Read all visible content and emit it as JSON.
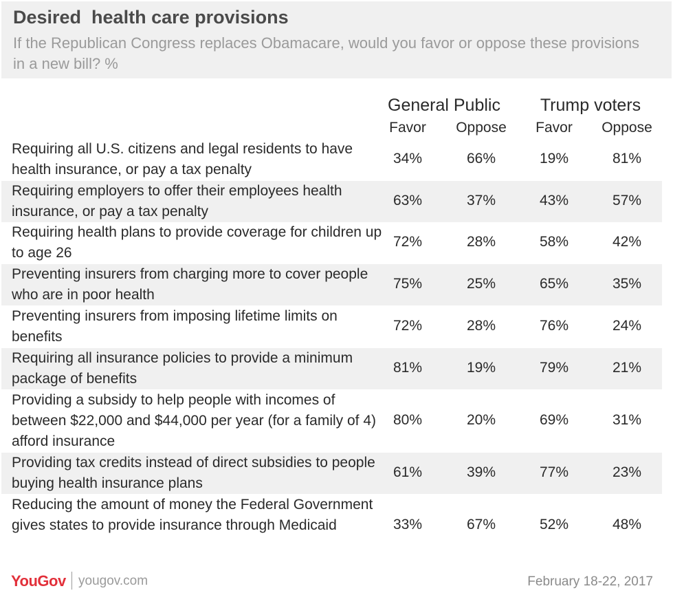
{
  "header": {
    "title": "Desired  health care provisions",
    "subtitle": "If the Republican Congress replaces Obamacare, would you favor or oppose these provisions in a new bill? %"
  },
  "colors": {
    "header_bg": "#f0f0f0",
    "row_shade": "#f0f0f0",
    "text": "#2a2a2a",
    "brand": "#e2303a"
  },
  "chart_data": {
    "type": "table",
    "groups": [
      {
        "name": "General Public",
        "columns": [
          "Favor",
          "Oppose"
        ]
      },
      {
        "name": "Trump voters",
        "columns": [
          "Favor",
          "Oppose"
        ]
      }
    ],
    "rows": [
      {
        "label": "Requiring all U.S. citizens and legal residents to have health insurance, or pay a tax penalty",
        "values": [
          "34%",
          "66%",
          "19%",
          "81%"
        ]
      },
      {
        "label": "Requiring employers to offer their employees health insurance, or pay a tax penalty",
        "values": [
          "63%",
          "37%",
          "43%",
          "57%"
        ]
      },
      {
        "label": "Requiring health plans to provide coverage for children up to age 26",
        "values": [
          "72%",
          "28%",
          "58%",
          "42%"
        ]
      },
      {
        "label": "Preventing insurers from charging more to cover people who are in poor health",
        "values": [
          "75%",
          "25%",
          "65%",
          "35%"
        ]
      },
      {
        "label": "Preventing insurers from imposing lifetime limits on benefits",
        "values": [
          "72%",
          "28%",
          "76%",
          "24%"
        ]
      },
      {
        "label": "Requiring all insurance policies to provide a minimum package of benefits",
        "values": [
          "81%",
          "19%",
          "79%",
          "21%"
        ]
      },
      {
        "label": "Providing a subsidy to help people with incomes of between $22,000 and $44,000 per year (for a family of 4) afford insurance",
        "values": [
          "80%",
          "20%",
          "69%",
          "31%"
        ]
      },
      {
        "label": "Providing tax credits instead of direct subsidies to people buying health insurance plans",
        "values": [
          "61%",
          "39%",
          "77%",
          "23%"
        ]
      },
      {
        "label": "Reducing the amount of money the Federal Government gives states to provide insurance through Medicaid",
        "values": [
          "33%",
          "67%",
          "52%",
          "48%"
        ]
      }
    ]
  },
  "footer": {
    "logo": "YouGov",
    "url": "yougov.com",
    "date": "February 18-22, 2017"
  }
}
